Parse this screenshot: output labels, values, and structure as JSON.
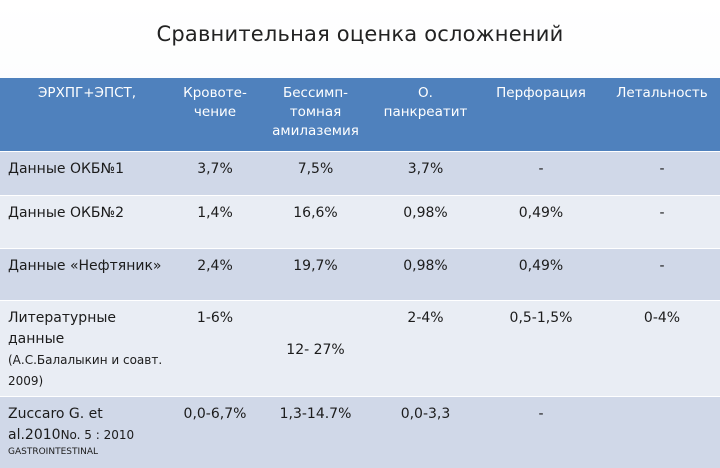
{
  "title": "Сравнительная оценка осложнений",
  "table": {
    "headers": [
      "ЭРХПГ+ЭПСТ,",
      "Кровоте-чение",
      "Бессимп-томная амилаземия",
      "О. панкреатит",
      "Перфорация",
      "Летальность"
    ],
    "rows": [
      {
        "label": "Данные ОКБ№1",
        "cells": [
          "3,7%",
          "7,5%",
          "3,7%",
          "-",
          "-"
        ]
      },
      {
        "label": "Данные ОКБ№2",
        "cells": [
          "1,4%",
          "16,6%",
          "0,98%",
          "0,49%",
          "-"
        ]
      },
      {
        "label": "Данные «Нефтяник»",
        "cells": [
          "2,4%",
          "19,7%",
          "0,98%",
          "0,49%",
          "-"
        ]
      },
      {
        "label": "Литературные данные",
        "label_note": "(А.С.Балалыкин и соавт. 2009)",
        "cells": [
          "1-6%",
          "12- 27%",
          "2-4%",
          "0,5-1,5%",
          "0-4%"
        ]
      },
      {
        "label": "Zuccaro G. et al.2010",
        "label_note": "No. 5 : 2010",
        "label_extra": "GASTROINTESTINAL",
        "cells": [
          "0,0-6,7%",
          "1,3-14.7%",
          "0,0-3,3",
          "-",
          ""
        ]
      }
    ]
  }
}
